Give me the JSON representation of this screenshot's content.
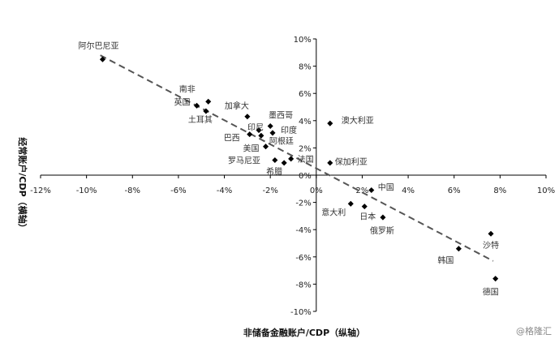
{
  "chart_data": {
    "type": "scatter",
    "xlabel": "非储备金融账户/CDP（纵轴）",
    "ylabel": "经常账户/CDP（横轴）",
    "xlim": [
      -12,
      10
    ],
    "ylim": [
      -10,
      10
    ],
    "x_ticks": [
      "-12%",
      "-10%",
      "-8%",
      "-6%",
      "-4%",
      "-2%",
      "0%",
      "2%",
      "4%",
      "6%",
      "8%",
      "10%"
    ],
    "y_ticks": [
      "10%",
      "8%",
      "6%",
      "4%",
      "2%",
      "0%",
      "-2%",
      "-4%",
      "-6%",
      "-8%",
      "-10%"
    ],
    "grid": false,
    "trendline": {
      "style": "dashed",
      "from": [
        -9.4,
        8.8
      ],
      "to": [
        7.7,
        -6.3
      ]
    },
    "points": [
      {
        "label": "阿尔巴尼亚",
        "x": -9.3,
        "y": 8.5
      },
      {
        "label": "南非",
        "x": -4.7,
        "y": 5.4
      },
      {
        "label": "英国",
        "x": -5.2,
        "y": 5.1
      },
      {
        "label": "土耳其",
        "x": -4.8,
        "y": 4.7
      },
      {
        "label": "加拿大",
        "x": -3.0,
        "y": 4.3
      },
      {
        "label": "墨西哥",
        "x": -2.0,
        "y": 3.6
      },
      {
        "label": "印尼",
        "x": -2.5,
        "y": 3.3
      },
      {
        "label": "印度",
        "x": -1.9,
        "y": 3.1
      },
      {
        "label": "巴西",
        "x": -2.9,
        "y": 3.0
      },
      {
        "label": "阿根廷",
        "x": -2.4,
        "y": 2.9
      },
      {
        "label": "美国",
        "x": -2.2,
        "y": 2.1
      },
      {
        "label": "法国",
        "x": -1.1,
        "y": 1.2
      },
      {
        "label": "罗马尼亚",
        "x": -1.8,
        "y": 1.1
      },
      {
        "label": "希腊",
        "x": -1.4,
        "y": 0.9
      },
      {
        "label": "澳大利亚",
        "x": 0.6,
        "y": 3.8
      },
      {
        "label": "保加利亚",
        "x": 0.6,
        "y": 0.9
      },
      {
        "label": "中国",
        "x": 2.4,
        "y": -1.1
      },
      {
        "label": "意大利",
        "x": 1.5,
        "y": -2.1
      },
      {
        "label": "日本",
        "x": 2.1,
        "y": -2.3
      },
      {
        "label": "俄罗斯",
        "x": 2.9,
        "y": -3.1
      },
      {
        "label": "沙特",
        "x": 7.6,
        "y": -4.3
      },
      {
        "label": "韩国",
        "x": 6.2,
        "y": -5.4
      },
      {
        "label": "德国",
        "x": 7.8,
        "y": -7.6
      }
    ],
    "watermark": "@格隆汇"
  }
}
